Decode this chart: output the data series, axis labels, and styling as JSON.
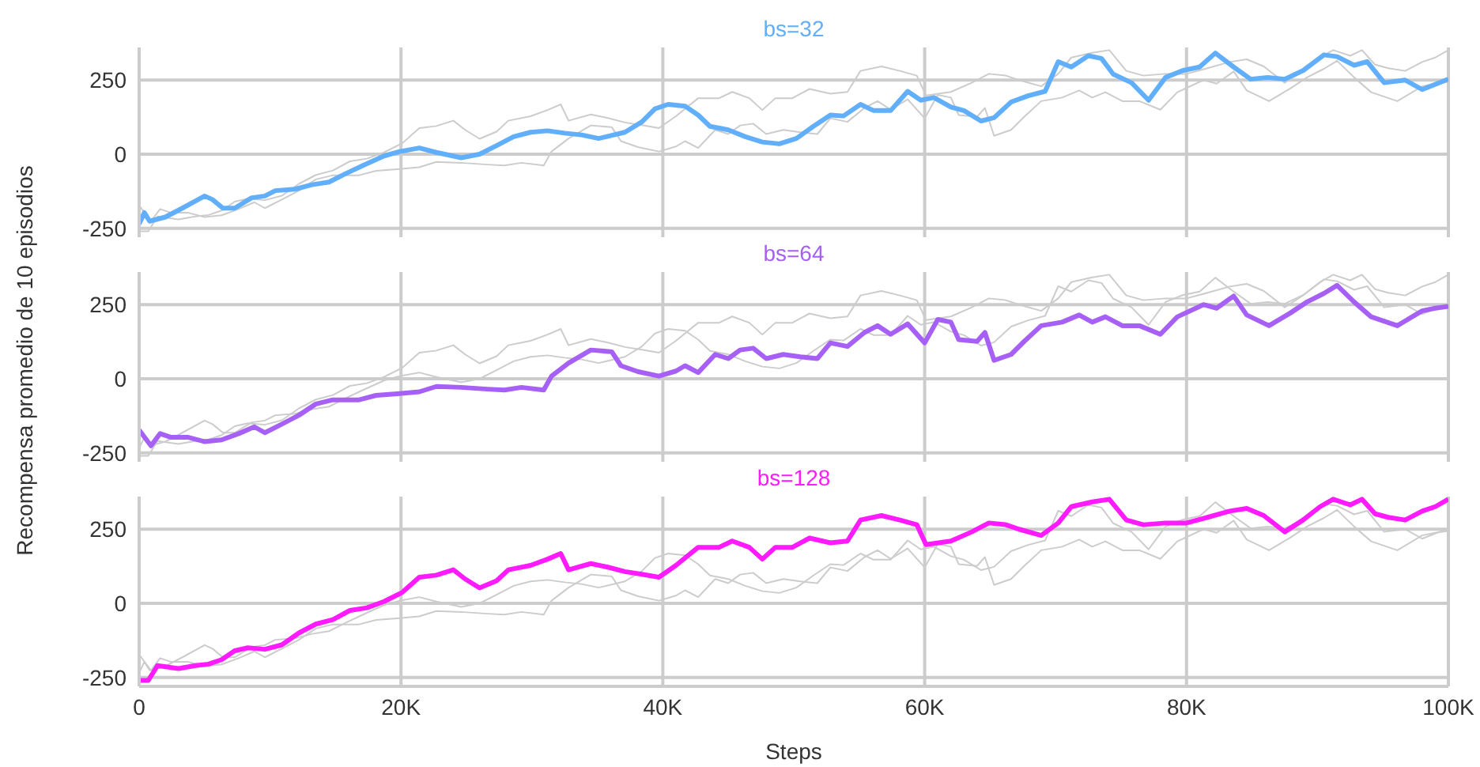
{
  "chart_data": [
    {
      "type": "line",
      "title": "bs=32",
      "xlim": [
        0,
        100000
      ],
      "ylim": [
        -280,
        360
      ],
      "yticks": [
        -250,
        0,
        250
      ],
      "xticks": [
        {
          "value": 0,
          "label": null
        },
        {
          "value": 20000,
          "label": null
        },
        {
          "value": 40000,
          "label": null
        },
        {
          "value": 60000,
          "label": null
        },
        {
          "value": 80000,
          "label": null
        },
        {
          "value": 100000,
          "label": null
        }
      ],
      "grid": true,
      "tick_labels": "y",
      "series": [
        {
          "color": "#cccccc",
          "x": [
            0,
            900,
            1600,
            2400,
            3700,
            5000,
            6300,
            7600,
            8800,
            9600,
            10900,
            12200,
            13500,
            14800,
            16800,
            18100,
            19900,
            21400,
            22700,
            24600,
            26600,
            27900,
            29200,
            30900,
            31500,
            32800,
            34500,
            36100,
            36800,
            38100,
            39700,
            41000,
            41700,
            42700,
            44000,
            45000,
            45900,
            46900,
            47900,
            49200,
            50500,
            51800,
            52800,
            54100,
            55400,
            56400,
            57400,
            58700,
            60000,
            61000,
            62000,
            62600,
            64000,
            64600,
            65300,
            66600,
            67600,
            68900,
            70500,
            71800,
            72800,
            73800,
            75100,
            76400,
            78000,
            79300,
            81300,
            82300,
            83600,
            84600,
            86300,
            87900,
            89200,
            90500,
            91500,
            92800,
            94100,
            96100,
            98000,
            99000,
            100000
          ],
          "values": [
            -173,
            -226,
            -185,
            -197,
            -197,
            -212,
            -206,
            -185,
            -162,
            -182,
            -153,
            -123,
            -85,
            -71,
            -71,
            -56,
            -50,
            -44,
            -26,
            -29,
            -35,
            -38,
            -29,
            -38,
            9,
            53,
            97,
            91,
            44,
            24,
            9,
            26,
            44,
            21,
            82,
            68,
            97,
            103,
            68,
            82,
            74,
            68,
            121,
            109,
            156,
            179,
            150,
            185,
            121,
            200,
            191,
            132,
            126,
            156,
            62,
            82,
            126,
            179,
            191,
            215,
            191,
            209,
            179,
            179,
            150,
            209,
            250,
            238,
            279,
            215,
            179,
            221,
            259,
            288,
            315,
            259,
            209,
            179,
            229,
            238,
            244
          ]
        },
        {
          "color": "#cccccc",
          "x": [
            0,
            700,
            1400,
            3000,
            4300,
            5300,
            6300,
            7300,
            8300,
            9600,
            10900,
            12200,
            13500,
            14800,
            16100,
            17400,
            18700,
            20100,
            21400,
            22700,
            24000,
            24900,
            26000,
            27300,
            28200,
            29900,
            31200,
            32200,
            32800,
            34500,
            35800,
            37100,
            38400,
            39700,
            41000,
            42700,
            44300,
            45300,
            46600,
            47600,
            48600,
            49900,
            51200,
            52800,
            54100,
            55100,
            56700,
            58100,
            59400,
            60100,
            62000,
            63600,
            64900,
            66200,
            67200,
            68900,
            70200,
            71200,
            72800,
            74100,
            75400,
            76700,
            78400,
            80000,
            81600,
            83300,
            84600,
            85900,
            87500,
            88900,
            90200,
            91200,
            92500,
            93400,
            94400,
            95400,
            96700,
            98000,
            99000,
            100000
          ],
          "values": [
            -260,
            -260,
            -210,
            -220,
            -210,
            -205,
            -190,
            -160,
            -150,
            -155,
            -140,
            -100,
            -70,
            -55,
            -24,
            -15,
            6,
            37,
            88,
            95,
            113,
            82,
            52,
            76,
            113,
            128,
            149,
            168,
            113,
            134,
            122,
            107,
            98,
            88,
            128,
            189,
            189,
            210,
            189,
            149,
            189,
            189,
            220,
            204,
            210,
            281,
            296,
            281,
            265,
            198,
            210,
            241,
            271,
            265,
            250,
            229,
            271,
            326,
            342,
            351,
            281,
            265,
            271,
            271,
            290,
            311,
            320,
            296,
            241,
            281,
            326,
            351,
            332,
            351,
            302,
            290,
            281,
            311,
            326,
            351
          ]
        },
        {
          "color": "#61affa",
          "x": [
            0,
            400,
            800,
            2000,
            3300,
            5000,
            5600,
            6400,
            7300,
            8600,
            9600,
            10400,
            11900,
            13200,
            14500,
            15800,
            17100,
            18700,
            19900,
            21400,
            22700,
            24600,
            26000,
            27300,
            28600,
            29900,
            31200,
            32500,
            33800,
            35100,
            37100,
            38400,
            39400,
            40400,
            41700,
            42700,
            43600,
            45000,
            46300,
            47600,
            48900,
            50200,
            51500,
            52800,
            53800,
            55100,
            56100,
            57400,
            58700,
            59700,
            60700,
            62000,
            63000,
            64300,
            65300,
            66600,
            67900,
            69200,
            70200,
            71200,
            72500,
            73500,
            74400,
            75800,
            77100,
            78400,
            79700,
            81000,
            82200,
            83600,
            84900,
            86200,
            87500,
            88900,
            90500,
            91500,
            92800,
            93800,
            95100,
            96700,
            98000,
            100000
          ],
          "values": [
            -235,
            -197,
            -226,
            -212,
            -182,
            -141,
            -153,
            -182,
            -182,
            -147,
            -141,
            -123,
            -118,
            -103,
            -94,
            -65,
            -38,
            -6,
            9,
            21,
            6,
            -12,
            0,
            29,
            59,
            74,
            79,
            71,
            65,
            53,
            74,
            109,
            153,
            168,
            162,
            132,
            94,
            82,
            59,
            41,
            35,
            53,
            94,
            132,
            129,
            168,
            147,
            147,
            212,
            182,
            191,
            159,
            147,
            112,
            123,
            176,
            197,
            212,
            312,
            294,
            332,
            323,
            270,
            241,
            182,
            259,
            282,
            294,
            341,
            294,
            253,
            259,
            253,
            282,
            335,
            329,
            300,
            312,
            241,
            250,
            218,
            253
          ]
        }
      ]
    },
    {
      "type": "line",
      "title": "bs=64",
      "ylabel": "Recompensa promedio de 10 episodios",
      "xlim": [
        0,
        100000
      ],
      "ylim": [
        -280,
        360
      ],
      "yticks": [
        -250,
        0,
        250
      ],
      "xticks": [
        {
          "value": 0,
          "label": null
        },
        {
          "value": 20000,
          "label": null
        },
        {
          "value": 40000,
          "label": null
        },
        {
          "value": 60000,
          "label": null
        },
        {
          "value": 80000,
          "label": null
        },
        {
          "value": 100000,
          "label": null
        }
      ],
      "grid": true,
      "tick_labels": "y",
      "series": [
        {
          "color": "#cccccc",
          "x": [
            0,
            400,
            800,
            2000,
            3300,
            5000,
            5600,
            6400,
            7300,
            8600,
            9600,
            10400,
            11900,
            13200,
            14500,
            15800,
            17100,
            18700,
            19900,
            21400,
            22700,
            24600,
            26000,
            27300,
            28600,
            29900,
            31200,
            32500,
            33800,
            35100,
            37100,
            38400,
            39400,
            40400,
            41700,
            42700,
            43600,
            45000,
            46300,
            47600,
            48900,
            50200,
            51500,
            52800,
            53800,
            55100,
            56100,
            57400,
            58700,
            59700,
            60700,
            62000,
            63000,
            64300,
            65300,
            66600,
            67900,
            69200,
            70200,
            71200,
            72500,
            73500,
            74400,
            75800,
            77100,
            78400,
            79700,
            81000,
            82200,
            83600,
            84900,
            86200,
            87500,
            88900,
            90500,
            91500,
            92800,
            93800,
            95100,
            96700,
            98000,
            100000
          ],
          "values": [
            -235,
            -197,
            -226,
            -212,
            -182,
            -141,
            -153,
            -182,
            -182,
            -147,
            -141,
            -123,
            -118,
            -103,
            -94,
            -65,
            -38,
            -6,
            9,
            21,
            6,
            -12,
            0,
            29,
            59,
            74,
            79,
            71,
            65,
            53,
            74,
            109,
            153,
            168,
            162,
            132,
            94,
            82,
            59,
            41,
            35,
            53,
            94,
            132,
            129,
            168,
            147,
            147,
            212,
            182,
            191,
            159,
            147,
            112,
            123,
            176,
            197,
            212,
            312,
            294,
            332,
            323,
            270,
            241,
            182,
            259,
            282,
            294,
            341,
            294,
            253,
            259,
            253,
            282,
            335,
            329,
            300,
            312,
            241,
            250,
            218,
            253
          ]
        },
        {
          "color": "#cccccc",
          "x": [
            0,
            700,
            1400,
            3000,
            4300,
            5300,
            6300,
            7300,
            8300,
            9600,
            10900,
            12200,
            13500,
            14800,
            16100,
            17400,
            18700,
            20100,
            21400,
            22700,
            24000,
            24900,
            26000,
            27300,
            28200,
            29900,
            31200,
            32200,
            32800,
            34500,
            35800,
            37100,
            38400,
            39700,
            41000,
            42700,
            44300,
            45300,
            46600,
            47600,
            48600,
            49900,
            51200,
            52800,
            54100,
            55100,
            56700,
            58100,
            59400,
            60100,
            62000,
            63600,
            64900,
            66200,
            67200,
            68900,
            70200,
            71200,
            72800,
            74100,
            75400,
            76700,
            78400,
            80000,
            81600,
            83300,
            84600,
            85900,
            87500,
            88900,
            90200,
            91200,
            92500,
            93400,
            94400,
            95400,
            96700,
            98000,
            99000,
            100000
          ],
          "values": [
            -260,
            -260,
            -210,
            -220,
            -210,
            -205,
            -190,
            -160,
            -150,
            -155,
            -140,
            -100,
            -70,
            -55,
            -24,
            -15,
            6,
            37,
            88,
            95,
            113,
            82,
            52,
            76,
            113,
            128,
            149,
            168,
            113,
            134,
            122,
            107,
            98,
            88,
            128,
            189,
            189,
            210,
            189,
            149,
            189,
            189,
            220,
            204,
            210,
            281,
            296,
            281,
            265,
            198,
            210,
            241,
            271,
            265,
            250,
            229,
            271,
            326,
            342,
            351,
            281,
            265,
            271,
            271,
            290,
            311,
            320,
            296,
            241,
            281,
            326,
            351,
            332,
            351,
            302,
            290,
            281,
            311,
            326,
            351
          ]
        },
        {
          "color": "#a660f5",
          "x": [
            0,
            900,
            1600,
            2400,
            3700,
            5000,
            6300,
            7600,
            8800,
            9600,
            10900,
            12200,
            13500,
            14800,
            16800,
            18100,
            19900,
            21400,
            22700,
            24600,
            26600,
            27900,
            29200,
            30900,
            31500,
            32800,
            34500,
            36100,
            36800,
            38100,
            39700,
            41000,
            41700,
            42700,
            44000,
            45000,
            45900,
            46900,
            47900,
            49200,
            50500,
            51800,
            52800,
            54100,
            55400,
            56400,
            57400,
            58700,
            60000,
            61000,
            62000,
            62600,
            64000,
            64600,
            65300,
            66600,
            67600,
            68900,
            70500,
            71800,
            72800,
            73800,
            75100,
            76400,
            78000,
            79300,
            81300,
            82300,
            83600,
            84600,
            86300,
            87900,
            89200,
            90500,
            91500,
            92800,
            94100,
            96100,
            98000,
            99000,
            100000
          ],
          "values": [
            -173,
            -226,
            -185,
            -197,
            -197,
            -212,
            -206,
            -185,
            -162,
            -182,
            -153,
            -123,
            -85,
            -71,
            -71,
            -56,
            -50,
            -44,
            -26,
            -29,
            -35,
            -38,
            -29,
            -38,
            9,
            53,
            97,
            91,
            44,
            24,
            9,
            26,
            44,
            21,
            82,
            68,
            97,
            103,
            68,
            82,
            74,
            68,
            121,
            109,
            156,
            179,
            150,
            185,
            121,
            200,
            191,
            132,
            126,
            156,
            62,
            82,
            126,
            179,
            191,
            215,
            191,
            209,
            179,
            179,
            150,
            209,
            250,
            238,
            279,
            215,
            179,
            221,
            259,
            288,
            315,
            259,
            209,
            179,
            229,
            238,
            244
          ]
        }
      ]
    },
    {
      "type": "line",
      "title": "bs=128",
      "xlabel": "Steps",
      "xlim": [
        0,
        100000
      ],
      "ylim": [
        -280,
        360
      ],
      "yticks": [
        -250,
        0,
        250
      ],
      "xticks": [
        0,
        {
          "value": 20000,
          "label": "20K"
        },
        {
          "value": 40000,
          "label": "40K"
        },
        {
          "value": 60000,
          "label": "60K"
        },
        {
          "value": 80000,
          "label": "80K"
        },
        {
          "value": 100000,
          "label": "100K"
        }
      ],
      "grid": true,
      "series": [
        {
          "color": "#cccccc",
          "x": [
            0,
            400,
            800,
            2000,
            3300,
            5000,
            5600,
            6400,
            7300,
            8600,
            9600,
            10400,
            11900,
            13200,
            14500,
            15800,
            17100,
            18700,
            19900,
            21400,
            22700,
            24600,
            26000,
            27300,
            28600,
            29900,
            31200,
            32500,
            33800,
            35100,
            37100,
            38400,
            39400,
            40400,
            41700,
            42700,
            43600,
            45000,
            46300,
            47600,
            48900,
            50200,
            51500,
            52800,
            53800,
            55100,
            56100,
            57400,
            58700,
            59700,
            60700,
            62000,
            63000,
            64300,
            65300,
            66600,
            67900,
            69200,
            70200,
            71200,
            72500,
            73500,
            74400,
            75800,
            77100,
            78400,
            79700,
            81000,
            82200,
            83600,
            84900,
            86200,
            87500,
            88900,
            90500,
            91500,
            92800,
            93800,
            95100,
            96700,
            98000,
            100000
          ],
          "values": [
            -235,
            -197,
            -226,
            -212,
            -182,
            -141,
            -153,
            -182,
            -182,
            -147,
            -141,
            -123,
            -118,
            -103,
            -94,
            -65,
            -38,
            -6,
            9,
            21,
            6,
            -12,
            0,
            29,
            59,
            74,
            79,
            71,
            65,
            53,
            74,
            109,
            153,
            168,
            162,
            132,
            94,
            82,
            59,
            41,
            35,
            53,
            94,
            132,
            129,
            168,
            147,
            147,
            212,
            182,
            191,
            159,
            147,
            112,
            123,
            176,
            197,
            212,
            312,
            294,
            332,
            323,
            270,
            241,
            182,
            259,
            282,
            294,
            341,
            294,
            253,
            259,
            253,
            282,
            335,
            329,
            300,
            312,
            241,
            250,
            218,
            253
          ]
        },
        {
          "color": "#cccccc",
          "x": [
            0,
            900,
            1600,
            2400,
            3700,
            5000,
            6300,
            7600,
            8800,
            9600,
            10900,
            12200,
            13500,
            14800,
            16800,
            18100,
            19900,
            21400,
            22700,
            24600,
            26600,
            27900,
            29200,
            30900,
            31500,
            32800,
            34500,
            36100,
            36800,
            38100,
            39700,
            41000,
            41700,
            42700,
            44000,
            45000,
            45900,
            46900,
            47900,
            49200,
            50500,
            51800,
            52800,
            54100,
            55400,
            56400,
            57400,
            58700,
            60000,
            61000,
            62000,
            62600,
            64000,
            64600,
            65300,
            66600,
            67600,
            68900,
            70500,
            71800,
            72800,
            73800,
            75100,
            76400,
            78000,
            79300,
            81300,
            82300,
            83600,
            84600,
            86300,
            87900,
            89200,
            90500,
            91500,
            92800,
            94100,
            96100,
            98000,
            99000,
            100000
          ],
          "values": [
            -173,
            -226,
            -185,
            -197,
            -197,
            -212,
            -206,
            -185,
            -162,
            -182,
            -153,
            -123,
            -85,
            -71,
            -71,
            -56,
            -50,
            -44,
            -26,
            -29,
            -35,
            -38,
            -29,
            -38,
            9,
            53,
            97,
            91,
            44,
            24,
            9,
            26,
            44,
            21,
            82,
            68,
            97,
            103,
            68,
            82,
            74,
            68,
            121,
            109,
            156,
            179,
            150,
            185,
            121,
            200,
            191,
            132,
            126,
            156,
            62,
            82,
            126,
            179,
            191,
            215,
            191,
            209,
            179,
            179,
            150,
            209,
            250,
            238,
            279,
            215,
            179,
            221,
            259,
            288,
            315,
            259,
            209,
            179,
            229,
            238,
            244
          ]
        },
        {
          "color": "#ff1aff",
          "x": [
            0,
            700,
            1400,
            3000,
            4300,
            5300,
            6300,
            7300,
            8300,
            9600,
            10900,
            12200,
            13500,
            14800,
            16100,
            17400,
            18700,
            20100,
            21400,
            22700,
            24000,
            24900,
            26000,
            27300,
            28200,
            29900,
            31200,
            32200,
            32800,
            34500,
            35800,
            37100,
            38400,
            39700,
            41000,
            42700,
            44300,
            45300,
            46600,
            47600,
            48600,
            49900,
            51200,
            52800,
            54100,
            55100,
            56700,
            58100,
            59400,
            60100,
            62000,
            63600,
            64900,
            66200,
            67200,
            68900,
            70200,
            71200,
            72800,
            74100,
            75400,
            76700,
            78400,
            80000,
            81600,
            83300,
            84600,
            85900,
            87500,
            88900,
            90200,
            91200,
            92500,
            93400,
            94400,
            95400,
            96700,
            98000,
            99000,
            100000
          ],
          "values": [
            -260,
            -260,
            -210,
            -220,
            -210,
            -205,
            -190,
            -160,
            -150,
            -155,
            -140,
            -100,
            -70,
            -55,
            -24,
            -15,
            6,
            37,
            88,
            95,
            113,
            82,
            52,
            76,
            113,
            128,
            149,
            168,
            113,
            134,
            122,
            107,
            98,
            88,
            128,
            189,
            189,
            210,
            189,
            149,
            189,
            189,
            220,
            204,
            210,
            281,
            296,
            281,
            265,
            198,
            210,
            241,
            271,
            265,
            250,
            229,
            271,
            326,
            342,
            351,
            281,
            265,
            271,
            271,
            290,
            311,
            320,
            296,
            241,
            281,
            326,
            351,
            332,
            351,
            302,
            290,
            281,
            311,
            326,
            351
          ]
        }
      ]
    }
  ]
}
